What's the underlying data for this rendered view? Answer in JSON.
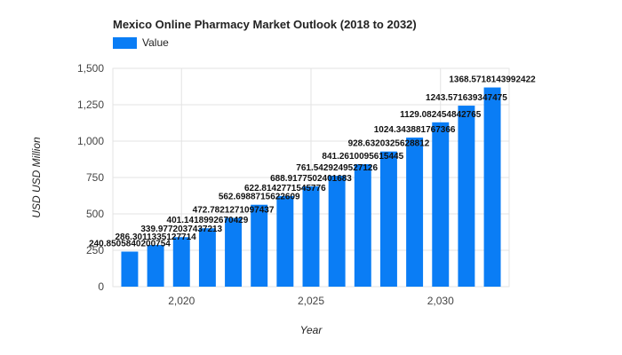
{
  "chart_data": {
    "type": "bar",
    "title": "Mexico Online Pharmacy Market Outlook (2018 to 2032)",
    "xlabel": "Year",
    "ylabel": "USD USD Million",
    "legend": {
      "entries": [
        "Value"
      ],
      "position": "top-left"
    },
    "color": "#0a7df5",
    "grid": true,
    "ylim": [
      0,
      1500
    ],
    "yticks": [
      0,
      250,
      500,
      750,
      1000,
      1250,
      1500
    ],
    "ytick_labels": [
      "0",
      "250",
      "500",
      "750",
      "1,000",
      "1,250",
      "1,500"
    ],
    "xlim": [
      2017.35,
      2032.65
    ],
    "xticks": [
      2020,
      2025,
      2030
    ],
    "xtick_labels": [
      "2,020",
      "2,025",
      "2,030"
    ],
    "x": [
      2018,
      2019,
      2020,
      2021,
      2022,
      2023,
      2024,
      2025,
      2026,
      2027,
      2028,
      2029,
      2030,
      2031,
      2032
    ],
    "series": [
      {
        "name": "Value",
        "values": [
          240.8505840200754,
          286.3011335127714,
          339.9772037437213,
          401.1418992670429,
          472.7821271097437,
          562.6988715622609,
          622.8142771545776,
          688.9177502401683,
          761.5429249527126,
          841.2610095615445,
          928.6320325628812,
          1024.343881767366,
          1129.082454842765,
          1243.571639347475,
          1368.5718143992422
        ],
        "labels": [
          "240.8505840200754",
          "286.3011335127714",
          "339.9772037437213",
          "401.1418992670429",
          "472.7821271097437",
          "562.6988715622609",
          "622.8142771545776",
          "688.9177502401683",
          "761.5429249527126",
          "841.2610095615445",
          "928.6320325628812",
          "1024.343881767366",
          "1129.082454842765",
          "1243.571639347475",
          "1368.5718143992422"
        ]
      }
    ]
  }
}
